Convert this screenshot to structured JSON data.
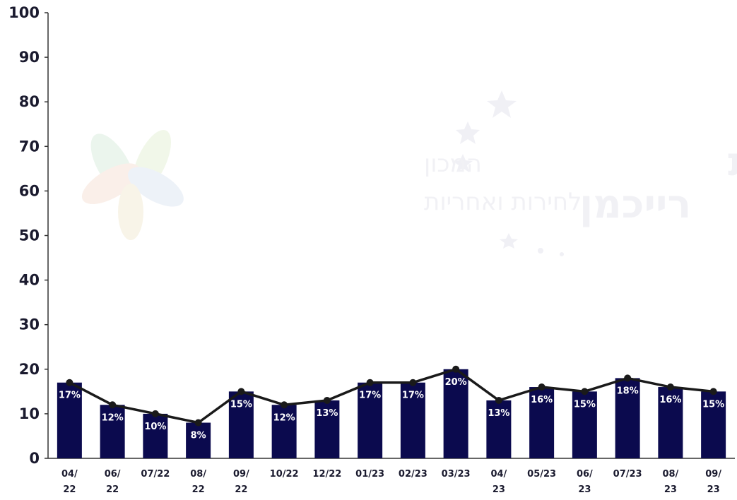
{
  "watermark": {
    "name_line1": "אוניברסיטת",
    "name_line2": "רייכמן",
    "institute_line1": "המכון",
    "institute_line2": "לחירות ואחריות"
  },
  "colors": {
    "bar": "#0b0a4e",
    "line": "#1a1a1a",
    "axis": "#333333",
    "label": "#ffffff"
  },
  "chart_data": {
    "type": "bar",
    "categories": [
      [
        "04/",
        "22"
      ],
      [
        "06/",
        "22"
      ],
      [
        "07/22"
      ],
      [
        "08/",
        "22"
      ],
      [
        "09/",
        "22"
      ],
      [
        "10/22"
      ],
      [
        "12/22"
      ],
      [
        "01/23"
      ],
      [
        "02/23"
      ],
      [
        "03/23"
      ],
      [
        "04/",
        "23"
      ],
      [
        "05/23"
      ],
      [
        "06/",
        "23"
      ],
      [
        "07/23"
      ],
      [
        "08/",
        "23"
      ],
      [
        "09/",
        "23"
      ]
    ],
    "values": [
      17,
      12,
      10,
      8,
      15,
      12,
      13,
      17,
      17,
      20,
      13,
      16,
      15,
      18,
      16,
      15
    ],
    "value_labels": [
      "17%",
      "12%",
      "10%",
      "8%",
      "15%",
      "12%",
      "13%",
      "17%",
      "17%",
      "20%",
      "13%",
      "16%",
      "15%",
      "18%",
      "16%",
      "15%"
    ],
    "line_overlay": true,
    "ylim": [
      0,
      100
    ],
    "yticks": [
      "0",
      "10",
      "20",
      "30",
      "40",
      "50",
      "60",
      "70",
      "80",
      "90",
      "100"
    ],
    "grid": false,
    "legend": "none"
  }
}
